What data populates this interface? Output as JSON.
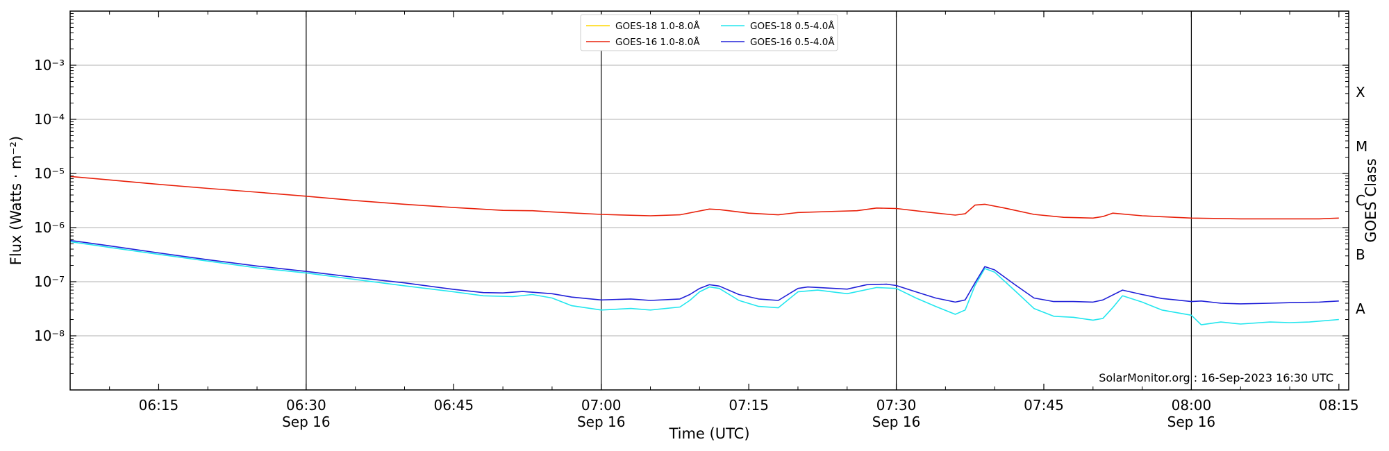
{
  "chart_data": {
    "type": "line",
    "xlabel": "Time (UTC)",
    "ylabel": "Flux (Watts · m⁻²)",
    "ylabel_right": "GOES Class",
    "yscale": "log",
    "ylim": [
      1e-09,
      0.01
    ],
    "xlim": [
      "06:06",
      "08:16"
    ],
    "grid": "horizontal",
    "legend_position": "top-center",
    "y_ticks": [
      {
        "value": 1e-08,
        "label": "10⁻⁸"
      },
      {
        "value": 1e-07,
        "label": "10⁻⁷"
      },
      {
        "value": 1e-06,
        "label": "10⁻⁶"
      },
      {
        "value": 1e-05,
        "label": "10⁻⁵"
      },
      {
        "value": 0.0001,
        "label": "10⁻⁴"
      },
      {
        "value": 0.001,
        "label": "10⁻³"
      }
    ],
    "x_ticks": [
      {
        "time": "06:15",
        "label": "06:15",
        "sublabel": ""
      },
      {
        "time": "06:30",
        "label": "06:30",
        "sublabel": "Sep 16"
      },
      {
        "time": "06:45",
        "label": "06:45",
        "sublabel": ""
      },
      {
        "time": "07:00",
        "label": "07:00",
        "sublabel": "Sep 16"
      },
      {
        "time": "07:15",
        "label": "07:15",
        "sublabel": ""
      },
      {
        "time": "07:30",
        "label": "07:30",
        "sublabel": "Sep 16"
      },
      {
        "time": "07:45",
        "label": "07:45",
        "sublabel": ""
      },
      {
        "time": "08:00",
        "label": "08:00",
        "sublabel": "Sep 16"
      },
      {
        "time": "08:15",
        "label": "08:15",
        "sublabel": ""
      }
    ],
    "vertical_lines": [
      "06:30",
      "07:00",
      "07:30",
      "08:00"
    ],
    "goes_classes": [
      {
        "label": "A",
        "value": 3.16e-08
      },
      {
        "label": "B",
        "value": 3.16e-07
      },
      {
        "label": "C",
        "value": 3.16e-06
      },
      {
        "label": "M",
        "value": 3.16e-05
      },
      {
        "label": "X",
        "value": 0.000316
      }
    ],
    "series": [
      {
        "name": "GOES-18 1.0-8.0Å",
        "color": "#ffd700",
        "points": []
      },
      {
        "name": "GOES-16 1.0-8.0Å",
        "color": "#e8200a",
        "points": [
          [
            "06:06",
            8.8e-06
          ],
          [
            "06:10",
            7.6e-06
          ],
          [
            "06:15",
            6.3e-06
          ],
          [
            "06:20",
            5.3e-06
          ],
          [
            "06:25",
            4.5e-06
          ],
          [
            "06:30",
            3.8e-06
          ],
          [
            "06:35",
            3.15e-06
          ],
          [
            "06:40",
            2.7e-06
          ],
          [
            "06:45",
            2.35e-06
          ],
          [
            "06:50",
            2.08e-06
          ],
          [
            "06:53",
            2.05e-06
          ],
          [
            "06:55",
            1.95e-06
          ],
          [
            "07:00",
            1.75e-06
          ],
          [
            "07:05",
            1.65e-06
          ],
          [
            "07:08",
            1.72e-06
          ],
          [
            "07:11",
            2.2e-06
          ],
          [
            "07:12",
            2.15e-06
          ],
          [
            "07:15",
            1.85e-06
          ],
          [
            "07:18",
            1.72e-06
          ],
          [
            "07:20",
            1.9e-06
          ],
          [
            "07:24",
            2e-06
          ],
          [
            "07:26",
            2.05e-06
          ],
          [
            "07:28",
            2.3e-06
          ],
          [
            "07:30",
            2.25e-06
          ],
          [
            "07:33",
            1.95e-06
          ],
          [
            "07:36",
            1.7e-06
          ],
          [
            "07:37",
            1.8e-06
          ],
          [
            "07:38",
            2.6e-06
          ],
          [
            "07:39",
            2.7e-06
          ],
          [
            "07:41",
            2.3e-06
          ],
          [
            "07:44",
            1.75e-06
          ],
          [
            "07:47",
            1.55e-06
          ],
          [
            "07:50",
            1.5e-06
          ],
          [
            "07:51",
            1.6e-06
          ],
          [
            "07:52",
            1.85e-06
          ],
          [
            "07:55",
            1.65e-06
          ],
          [
            "08:00",
            1.5e-06
          ],
          [
            "08:05",
            1.45e-06
          ],
          [
            "08:10",
            1.45e-06
          ],
          [
            "08:13",
            1.45e-06
          ],
          [
            "08:15",
            1.5e-06
          ]
        ]
      },
      {
        "name": "GOES-18 0.5-4.0Å",
        "color": "#22e6ee",
        "points": [
          [
            "06:06",
            5.5e-07
          ],
          [
            "06:10",
            4.3e-07
          ],
          [
            "06:15",
            3.2e-07
          ],
          [
            "06:20",
            2.4e-07
          ],
          [
            "06:25",
            1.8e-07
          ],
          [
            "06:30",
            1.45e-07
          ],
          [
            "06:35",
            1.1e-07
          ],
          [
            "06:40",
            8.4e-08
          ],
          [
            "06:45",
            6.5e-08
          ],
          [
            "06:48",
            5.5e-08
          ],
          [
            "06:51",
            5.3e-08
          ],
          [
            "06:53",
            5.8e-08
          ],
          [
            "06:55",
            5e-08
          ],
          [
            "06:57",
            3.6e-08
          ],
          [
            "07:00",
            3e-08
          ],
          [
            "07:03",
            3.2e-08
          ],
          [
            "07:05",
            3e-08
          ],
          [
            "07:08",
            3.4e-08
          ],
          [
            "07:09",
            4.5e-08
          ],
          [
            "07:10",
            6.5e-08
          ],
          [
            "07:11",
            8e-08
          ],
          [
            "07:12",
            7.5e-08
          ],
          [
            "07:14",
            4.5e-08
          ],
          [
            "07:16",
            3.5e-08
          ],
          [
            "07:18",
            3.3e-08
          ],
          [
            "07:20",
            6.5e-08
          ],
          [
            "07:22",
            7e-08
          ],
          [
            "07:25",
            6e-08
          ],
          [
            "07:28",
            7.8e-08
          ],
          [
            "07:30",
            7.5e-08
          ],
          [
            "07:32",
            5e-08
          ],
          [
            "07:34",
            3.5e-08
          ],
          [
            "07:36",
            2.5e-08
          ],
          [
            "07:37",
            3e-08
          ],
          [
            "07:38",
            8.5e-08
          ],
          [
            "07:39",
            1.75e-07
          ],
          [
            "07:40",
            1.5e-07
          ],
          [
            "07:42",
            7e-08
          ],
          [
            "07:44",
            3.2e-08
          ],
          [
            "07:46",
            2.3e-08
          ],
          [
            "07:48",
            2.2e-08
          ],
          [
            "07:50",
            1.95e-08
          ],
          [
            "07:51",
            2.1e-08
          ],
          [
            "07:52",
            3.3e-08
          ],
          [
            "07:53",
            5.5e-08
          ],
          [
            "07:55",
            4.2e-08
          ],
          [
            "07:57",
            3e-08
          ],
          [
            "08:00",
            2.4e-08
          ],
          [
            "08:01",
            1.6e-08
          ],
          [
            "08:03",
            1.8e-08
          ],
          [
            "08:05",
            1.65e-08
          ],
          [
            "08:08",
            1.8e-08
          ],
          [
            "08:10",
            1.75e-08
          ],
          [
            "08:12",
            1.8e-08
          ],
          [
            "08:15",
            2e-08
          ]
        ]
      },
      {
        "name": "GOES-16 0.5-4.0Å",
        "color": "#2020d8",
        "points": [
          [
            "06:06",
            5.8e-07
          ],
          [
            "06:10",
            4.6e-07
          ],
          [
            "06:15",
            3.4e-07
          ],
          [
            "06:20",
            2.55e-07
          ],
          [
            "06:25",
            1.95e-07
          ],
          [
            "06:30",
            1.55e-07
          ],
          [
            "06:35",
            1.2e-07
          ],
          [
            "06:40",
            9.5e-08
          ],
          [
            "06:45",
            7.2e-08
          ],
          [
            "06:48",
            6.3e-08
          ],
          [
            "06:50",
            6.2e-08
          ],
          [
            "06:52",
            6.6e-08
          ],
          [
            "06:55",
            6e-08
          ],
          [
            "06:57",
            5.2e-08
          ],
          [
            "07:00",
            4.6e-08
          ],
          [
            "07:03",
            4.8e-08
          ],
          [
            "07:05",
            4.5e-08
          ],
          [
            "07:08",
            4.8e-08
          ],
          [
            "07:09",
            5.8e-08
          ],
          [
            "07:10",
            7.5e-08
          ],
          [
            "07:11",
            8.8e-08
          ],
          [
            "07:12",
            8.3e-08
          ],
          [
            "07:14",
            5.8e-08
          ],
          [
            "07:16",
            4.8e-08
          ],
          [
            "07:18",
            4.5e-08
          ],
          [
            "07:20",
            7.5e-08
          ],
          [
            "07:21",
            8e-08
          ],
          [
            "07:25",
            7.3e-08
          ],
          [
            "07:27",
            8.8e-08
          ],
          [
            "07:29",
            9e-08
          ],
          [
            "07:30",
            8.5e-08
          ],
          [
            "07:32",
            6.5e-08
          ],
          [
            "07:34",
            5e-08
          ],
          [
            "07:36",
            4.2e-08
          ],
          [
            "07:37",
            4.6e-08
          ],
          [
            "07:38",
            9.5e-08
          ],
          [
            "07:39",
            1.9e-07
          ],
          [
            "07:40",
            1.65e-07
          ],
          [
            "07:42",
            9e-08
          ],
          [
            "07:44",
            5e-08
          ],
          [
            "07:46",
            4.3e-08
          ],
          [
            "07:48",
            4.3e-08
          ],
          [
            "07:50",
            4.2e-08
          ],
          [
            "07:51",
            4.6e-08
          ],
          [
            "07:53",
            7e-08
          ],
          [
            "07:55",
            5.8e-08
          ],
          [
            "07:57",
            4.9e-08
          ],
          [
            "08:00",
            4.3e-08
          ],
          [
            "08:01",
            4.4e-08
          ],
          [
            "08:03",
            4e-08
          ],
          [
            "08:05",
            3.9e-08
          ],
          [
            "08:08",
            4e-08
          ],
          [
            "08:10",
            4.1e-08
          ],
          [
            "08:13",
            4.2e-08
          ],
          [
            "08:15",
            4.4e-08
          ]
        ]
      }
    ],
    "annotation": "SolarMonitor.org : 16-Sep-2023 16:30 UTC"
  }
}
